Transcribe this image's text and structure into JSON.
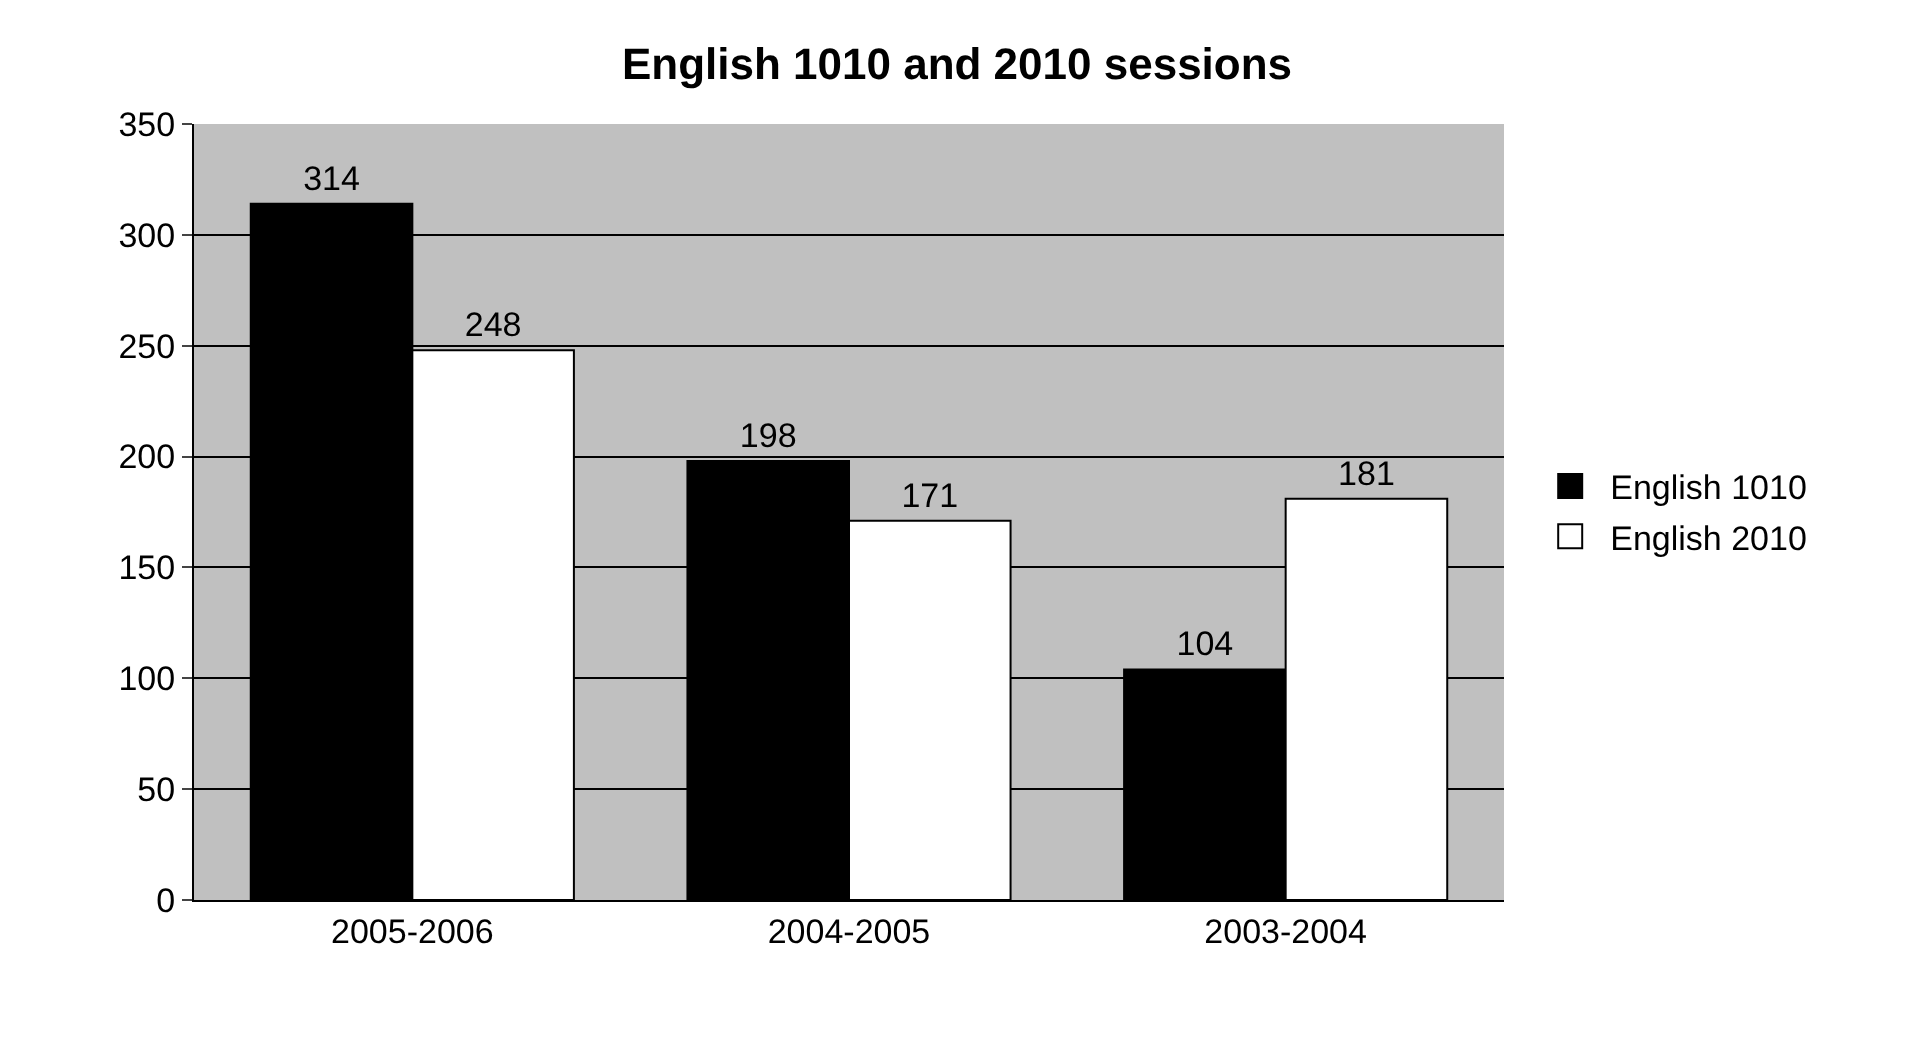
{
  "chart_data": {
    "type": "bar",
    "title": "English 1010 and 2010 sessions",
    "categories": [
      "2005-2006",
      "2004-2005",
      "2003-2004"
    ],
    "series": [
      {
        "name": "English 1010",
        "color": "#000000",
        "values": [
          314,
          198,
          104
        ]
      },
      {
        "name": "English 2010",
        "color": "#ffffff",
        "values": [
          248,
          171,
          181
        ]
      }
    ],
    "ylim": [
      0,
      350
    ],
    "yticks": [
      0,
      50,
      100,
      150,
      200,
      250,
      300,
      350
    ],
    "grid": "y",
    "legend": "right",
    "data_labels": true
  }
}
